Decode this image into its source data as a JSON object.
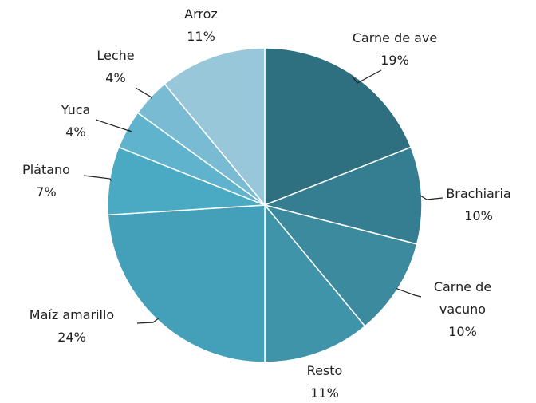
{
  "chart_data": {
    "type": "pie",
    "categories": [
      "Carne de ave",
      "Brachiaria",
      "Carne de vacuno",
      "Resto",
      "Maíz amarillo",
      "Plátano",
      "Yuca",
      "Leche",
      "Arroz"
    ],
    "values": [
      19,
      10,
      10,
      11,
      24,
      7,
      4,
      4,
      11
    ],
    "value_labels": [
      "19%",
      "10%",
      "10%",
      "11%",
      "24%",
      "7%",
      "4%",
      "4%",
      "11%"
    ],
    "colors": [
      "#2e6f80",
      "#357e91",
      "#3b8a9e",
      "#3f94a9",
      "#44a0b8",
      "#4aaac4",
      "#5fb3cc",
      "#78bbd2",
      "#98c7d9"
    ]
  }
}
